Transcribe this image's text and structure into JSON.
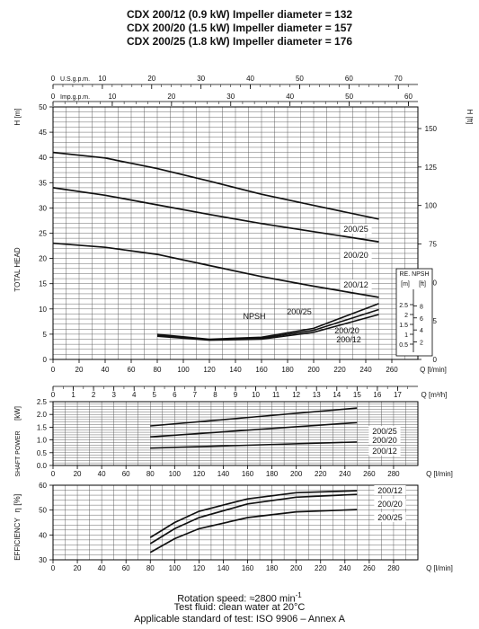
{
  "titles": [
    "CDX 200/12 (0.9 kW) Impeller diameter = 132",
    "CDX 200/20 (1.5 kW) Impeller diameter = 157",
    "CDX 200/25 (1.8 kW) Impeller diameter = 176"
  ],
  "footer": {
    "rotation_prefix": "Rotation speed: ≈2800 min",
    "rotation_sup": "-1",
    "fluid": "Test fluid: clean water at 20°C",
    "standard": "Applicable standard of test: ISO 9906 – Annex A"
  },
  "colors": {
    "grid": "#555555",
    "curve": "#111111",
    "background": "#ffffff"
  },
  "chart_data": [
    {
      "type": "line",
      "name": "head",
      "ylabel": "TOTAL HEAD",
      "y_unit_left": "H [m]",
      "y_unit_right": "H [ft]",
      "x_unit": "Q [l/min]",
      "xlim": [
        0,
        280
      ],
      "ylim": [
        0,
        50
      ],
      "x_ticks": [
        0,
        20,
        40,
        60,
        80,
        100,
        120,
        140,
        160,
        180,
        200,
        220,
        240,
        260
      ],
      "y_ticks": [
        0,
        5,
        10,
        15,
        20,
        25,
        30,
        35,
        40,
        45,
        50
      ],
      "right_ticks_ft": [
        0,
        25,
        50,
        75,
        100,
        125,
        150
      ],
      "top_axes": [
        {
          "label": "U.S.g.p.m.",
          "ticks": [
            0,
            10,
            20,
            30,
            40,
            50,
            60,
            70
          ],
          "per_lpm": 0.264172
        },
        {
          "label": "Imp.g.p.m.",
          "ticks": [
            0,
            10,
            20,
            30,
            40,
            50,
            60
          ],
          "per_lpm": 0.219969
        }
      ],
      "series": [
        {
          "name": "200/25",
          "x": [
            0,
            40,
            80,
            120,
            160,
            200,
            250
          ],
          "y": [
            41,
            39.9,
            37.8,
            35.3,
            32.7,
            30.5,
            27.8
          ]
        },
        {
          "name": "200/20",
          "x": [
            0,
            40,
            80,
            120,
            160,
            200,
            250
          ],
          "y": [
            34,
            32.5,
            30.6,
            28.7,
            26.9,
            25.3,
            23.3
          ]
        },
        {
          "name": "200/12",
          "x": [
            0,
            40,
            80,
            120,
            160,
            200,
            250
          ],
          "y": [
            23,
            22.2,
            20.8,
            18.6,
            16.4,
            14.5,
            12.3
          ]
        }
      ],
      "npsh_label": "NPSH",
      "npsh_axis": {
        "title": "RE. NPSH",
        "unit_m": "[m]",
        "unit_ft": "[ft]",
        "m_ticks": [
          "0.5",
          "1",
          "1.5",
          "2",
          "2.5"
        ],
        "ft_ticks": [
          "2",
          "4",
          "6",
          "8"
        ]
      },
      "npsh_series": [
        {
          "name": "200/25",
          "x": [
            80,
            120,
            160,
            200,
            250
          ],
          "y": [
            1.0,
            0.75,
            0.85,
            1.3,
            2.55
          ]
        },
        {
          "name": "200/20",
          "x": [
            80,
            120,
            160,
            200,
            250
          ],
          "y": [
            0.95,
            0.72,
            0.8,
            1.2,
            2.25
          ]
        },
        {
          "name": "200/12",
          "x": [
            80,
            120,
            160,
            200,
            250
          ],
          "y": [
            0.9,
            0.7,
            0.75,
            1.1,
            2.0
          ]
        }
      ]
    },
    {
      "type": "line",
      "name": "power",
      "ylabel": "SHAFT POWER",
      "y_unit": "[kW]",
      "x_unit": "Q [l/min]",
      "xlim": [
        0,
        300
      ],
      "ylim": [
        0,
        2.5
      ],
      "x_ticks": [
        0,
        20,
        40,
        60,
        80,
        100,
        120,
        140,
        160,
        180,
        200,
        220,
        240,
        260,
        280
      ],
      "y_ticks": [
        0,
        0.5,
        1.0,
        1.5,
        2.0,
        2.5
      ],
      "top_axis": {
        "label": "Q [m³/h]",
        "ticks": [
          0,
          1,
          2,
          3,
          4,
          5,
          6,
          7,
          8,
          9,
          10,
          11,
          12,
          13,
          14,
          15,
          16,
          17
        ]
      },
      "series": [
        {
          "name": "200/25",
          "x": [
            80,
            250
          ],
          "y": [
            1.55,
            2.25
          ]
        },
        {
          "name": "200/20",
          "x": [
            80,
            250
          ],
          "y": [
            1.12,
            1.68
          ]
        },
        {
          "name": "200/12",
          "x": [
            80,
            250
          ],
          "y": [
            0.68,
            0.92
          ]
        }
      ]
    },
    {
      "type": "line",
      "name": "efficiency",
      "ylabel": "EFFICIENCY",
      "y_unit": "η [%]",
      "x_unit": "Q [l/min]",
      "xlim": [
        0,
        300
      ],
      "ylim": [
        30,
        60
      ],
      "x_ticks": [
        0,
        20,
        40,
        60,
        80,
        100,
        120,
        140,
        160,
        180,
        200,
        220,
        240,
        260,
        280
      ],
      "y_ticks": [
        30,
        40,
        50,
        60
      ],
      "series": [
        {
          "name": "200/12",
          "x": [
            80,
            100,
            120,
            160,
            200,
            250
          ],
          "y": [
            39,
            45,
            49.5,
            54.5,
            57,
            57.8
          ]
        },
        {
          "name": "200/20",
          "x": [
            80,
            100,
            120,
            160,
            200,
            250
          ],
          "y": [
            36.5,
            42.5,
            47,
            52.5,
            55.2,
            56.3
          ]
        },
        {
          "name": "200/25",
          "x": [
            80,
            100,
            120,
            160,
            200,
            250
          ],
          "y": [
            33,
            38.5,
            42.5,
            47,
            49.3,
            50.2
          ]
        }
      ]
    }
  ]
}
